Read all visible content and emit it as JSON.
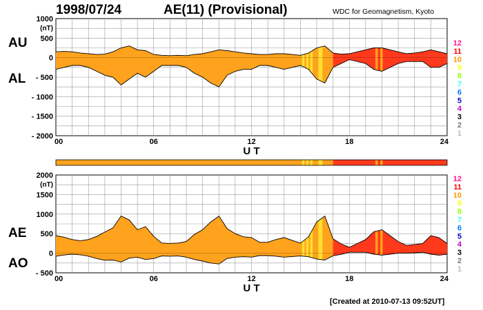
{
  "header": {
    "date": "1998/07/24",
    "title": "AE(11) (Provisional)",
    "source": "WDC for Geomagnetism, Kyoto"
  },
  "footer": {
    "created": "[Created at 2010-07-13 09:52UT]"
  },
  "colors": {
    "fill_early": "#ffa21d",
    "fill_late": "#ff3a1c",
    "highlight": "#ffe030",
    "grid": "#9a9a9a",
    "line": "#000000"
  },
  "station_scale": {
    "labels": [
      "12",
      "11",
      "10",
      "9",
      "8",
      "7",
      "6",
      "5",
      "4",
      "3",
      "2",
      "1"
    ],
    "colors": [
      "#ff1493",
      "#ff0000",
      "#ff9900",
      "#ffff00",
      "#99ff00",
      "#33ffff",
      "#0077ff",
      "#0000cc",
      "#cc00cc",
      "#000000",
      "#777777",
      "#bbbbbb"
    ]
  },
  "chart_data": [
    {
      "type": "area",
      "panel": "AU/AL",
      "series_labels": [
        "AU",
        "AL"
      ],
      "yunit": "(nT)",
      "xlabel": "U T",
      "xlim": [
        0,
        24
      ],
      "ylim": [
        -2000,
        1000
      ],
      "yticks": [
        "1000",
        "500",
        "0",
        "- 500",
        "- 1000",
        "- 1500",
        "- 2000"
      ],
      "xticks": [
        "00",
        "06",
        "12",
        "18",
        "24"
      ],
      "grid": true,
      "x": [
        0,
        0.5,
        1,
        1.5,
        2,
        2.5,
        3,
        3.5,
        4,
        4.5,
        5,
        5.5,
        6,
        6.5,
        7,
        7.5,
        8,
        8.5,
        9,
        9.5,
        10,
        10.5,
        11,
        11.5,
        12,
        12.5,
        13,
        13.5,
        14,
        14.5,
        15,
        15.5,
        16,
        16.5,
        17,
        17.5,
        18,
        18.5,
        19,
        19.5,
        20,
        20.5,
        21,
        21.5,
        22,
        22.5,
        23,
        23.5,
        24
      ],
      "series": [
        {
          "name": "AU",
          "values": [
            150,
            160,
            150,
            120,
            100,
            80,
            90,
            150,
            250,
            300,
            200,
            180,
            80,
            60,
            50,
            60,
            50,
            80,
            100,
            150,
            200,
            180,
            150,
            120,
            100,
            80,
            80,
            100,
            100,
            80,
            60,
            120,
            250,
            300,
            120,
            90,
            100,
            150,
            200,
            250,
            250,
            200,
            150,
            100,
            120,
            150,
            200,
            150,
            100
          ]
        },
        {
          "name": "AL",
          "values": [
            -300,
            -250,
            -200,
            -200,
            -250,
            -350,
            -450,
            -500,
            -700,
            -550,
            -400,
            -500,
            -350,
            -200,
            -200,
            -200,
            -250,
            -400,
            -500,
            -650,
            -750,
            -450,
            -350,
            -300,
            -300,
            -200,
            -200,
            -250,
            -300,
            -250,
            -200,
            -300,
            -550,
            -650,
            -250,
            -150,
            -50,
            -100,
            -150,
            -300,
            -350,
            -250,
            -150,
            -100,
            -100,
            -100,
            -250,
            -250,
            -150
          ]
        }
      ]
    },
    {
      "type": "area",
      "panel": "AE/AO",
      "series_labels": [
        "AE",
        "AO"
      ],
      "yunit": "(nT)",
      "xlabel": "U T",
      "xlim": [
        0,
        24
      ],
      "ylim": [
        -500,
        2000
      ],
      "yticks": [
        "2000",
        "1500",
        "1000",
        "500",
        "0",
        "- 500"
      ],
      "xticks": [
        "00",
        "06",
        "12",
        "18",
        "24"
      ],
      "grid": true,
      "x": [
        0,
        0.5,
        1,
        1.5,
        2,
        2.5,
        3,
        3.5,
        4,
        4.5,
        5,
        5.5,
        6,
        6.5,
        7,
        7.5,
        8,
        8.5,
        9,
        9.5,
        10,
        10.5,
        11,
        11.5,
        12,
        12.5,
        13,
        13.5,
        14,
        14.5,
        15,
        15.5,
        16,
        16.5,
        17,
        17.5,
        18,
        18.5,
        19,
        19.5,
        20,
        20.5,
        21,
        21.5,
        22,
        22.5,
        23,
        23.5,
        24
      ],
      "series": [
        {
          "name": "AE",
          "values": [
            450,
            410,
            350,
            320,
            350,
            430,
            540,
            650,
            950,
            850,
            600,
            680,
            430,
            260,
            250,
            260,
            300,
            480,
            600,
            800,
            950,
            630,
            500,
            420,
            400,
            280,
            280,
            350,
            400,
            330,
            260,
            420,
            800,
            950,
            370,
            240,
            150,
            250,
            350,
            550,
            600,
            450,
            300,
            200,
            220,
            250,
            450,
            400,
            250
          ]
        },
        {
          "name": "AO",
          "values": [
            -75,
            -45,
            -25,
            -40,
            -75,
            -135,
            -180,
            -175,
            -225,
            -125,
            -100,
            -160,
            -135,
            -70,
            -75,
            -70,
            -100,
            -160,
            -200,
            -250,
            -275,
            -135,
            -100,
            -90,
            -100,
            -60,
            -60,
            -75,
            -100,
            -85,
            -70,
            -90,
            -150,
            -175,
            -65,
            -30,
            25,
            25,
            25,
            -25,
            -50,
            -25,
            0,
            0,
            10,
            25,
            -25,
            -50,
            -25
          ]
        }
      ]
    }
  ]
}
